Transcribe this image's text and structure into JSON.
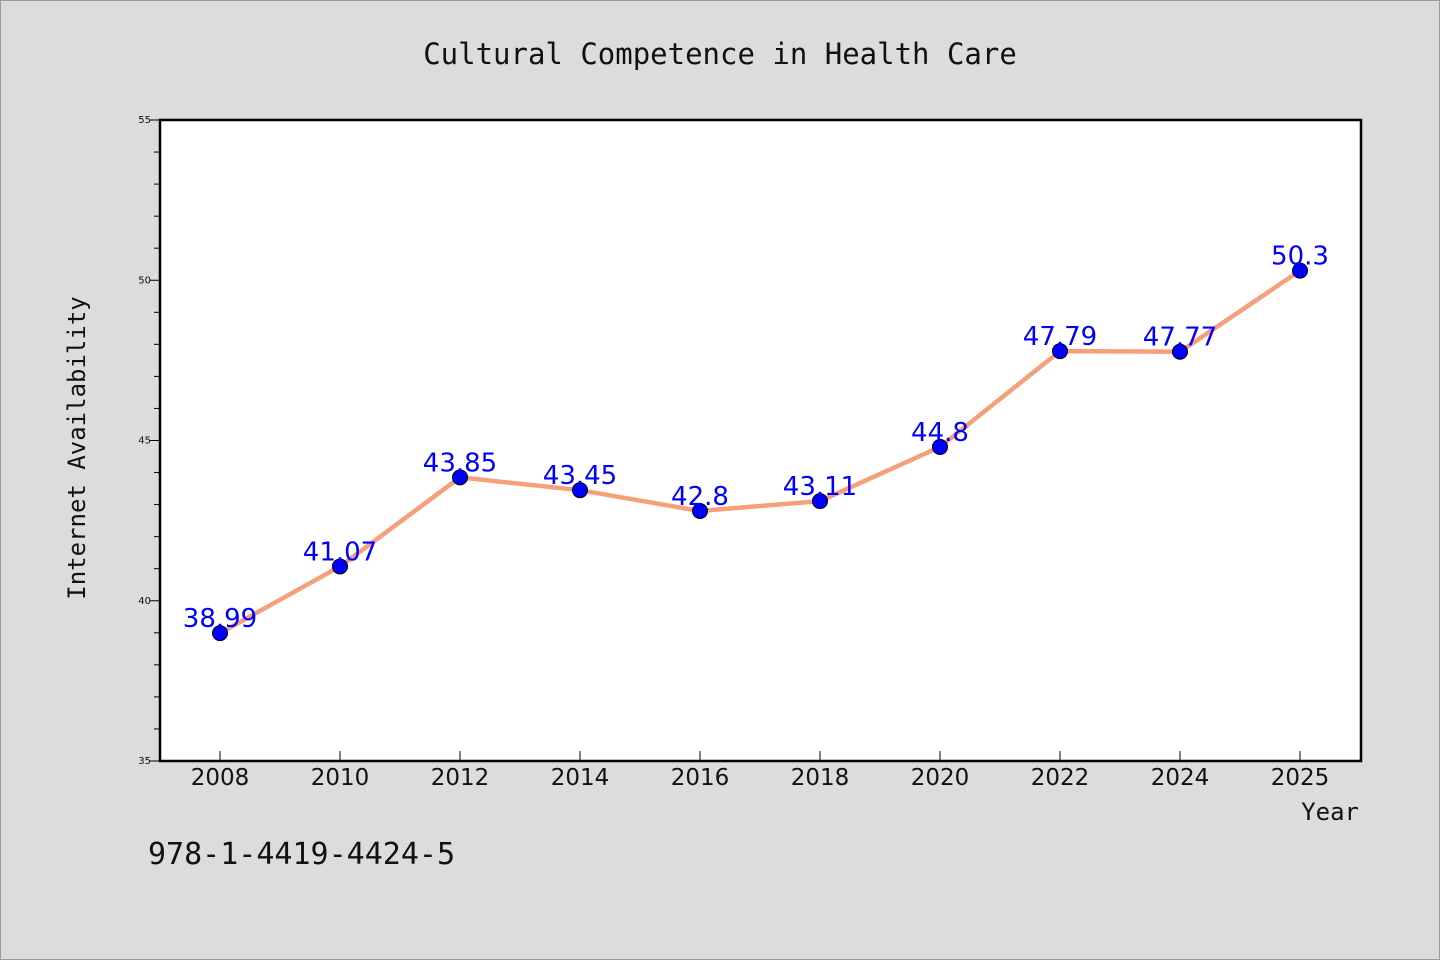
{
  "chart_data": {
    "type": "line",
    "title": "Cultural Competence in Health Care",
    "xlabel": "Year",
    "ylabel": "Internet Availability",
    "x": [
      2008,
      2010,
      2012,
      2014,
      2016,
      2018,
      2020,
      2022,
      2024,
      2025
    ],
    "values": [
      38.99,
      41.07,
      43.85,
      43.45,
      42.8,
      43.11,
      44.8,
      47.79,
      47.77,
      50.3
    ],
    "data_labels": [
      "38.99",
      "41.07",
      "43.85",
      "43.45",
      "42.8",
      "43.11",
      "44.8",
      "47.79",
      "47.77",
      "50.3"
    ],
    "x_tick_labels": [
      "2008",
      "2010",
      "2012",
      "2014",
      "2016",
      "2018",
      "2020",
      "2022",
      "2024",
      "2025"
    ],
    "y_tick_labels": [
      "35",
      "40",
      "45",
      "50",
      "55"
    ],
    "y_ticks": [
      35,
      40,
      45,
      50,
      55
    ],
    "ylim": [
      35,
      55
    ],
    "grid": false,
    "legend": "none",
    "line_color": "#f5a07a",
    "marker_color": "#0000ff",
    "label_color": "#0000ff"
  },
  "footer": {
    "isbn": "978-1-4419-4424-5"
  }
}
